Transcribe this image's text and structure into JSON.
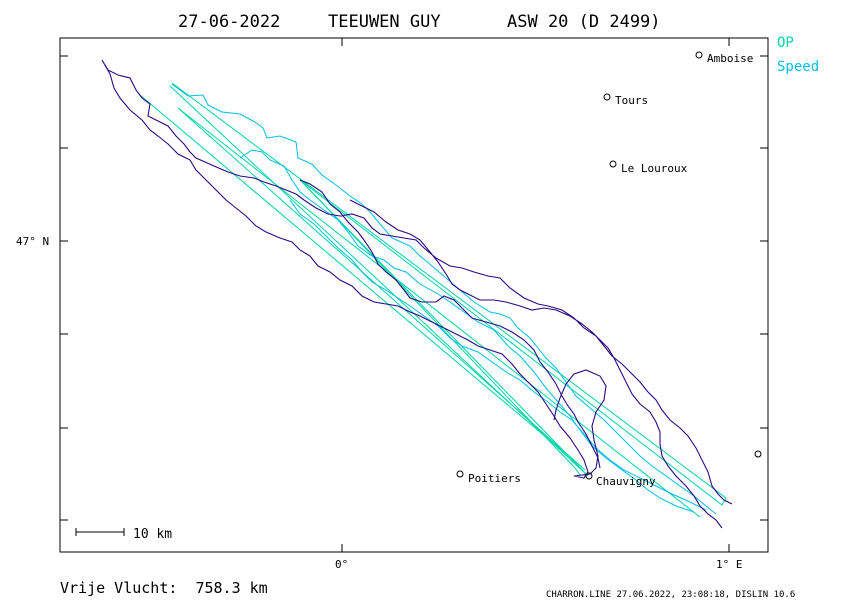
{
  "header": {
    "date": "27-06-2022",
    "pilot": "TEEUWEN GUY",
    "glider": "ASW 20 (D 2499)"
  },
  "legend": [
    {
      "label": "OP",
      "color": "#00d5a8"
    },
    {
      "label": "Speed",
      "color": "#00bfe8"
    }
  ],
  "axes": {
    "y_label": "47° N",
    "x_labels": [
      "0°",
      "1° E"
    ]
  },
  "places": [
    {
      "name": "Amboise"
    },
    {
      "name": "Tours"
    },
    {
      "name": "Le Louroux"
    },
    {
      "name": "Poitiers"
    },
    {
      "name": "Chauvigny"
    },
    {
      "name": ""
    }
  ],
  "scale_bar": {
    "label": "10 km"
  },
  "footer": {
    "distance": "Vrije Vlucht:  758.3 km",
    "credit": "CHARRON.LINE 27.06.2022, 23:08:18, DISLIN 10.6"
  },
  "colors": {
    "track": "#2a0a80",
    "op": "#00d5a8",
    "speed": "#00bfe8",
    "frame": "#000000"
  }
}
